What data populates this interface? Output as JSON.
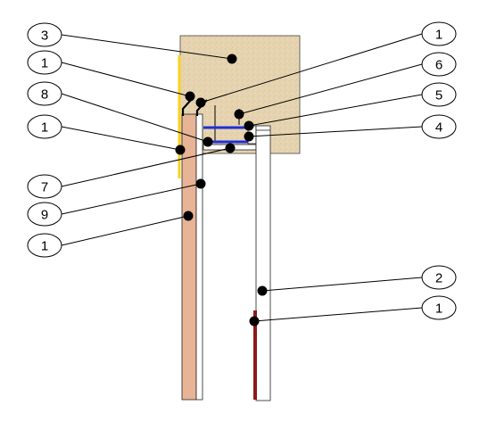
{
  "callouts": [
    {
      "id": "c3-top",
      "label": "3"
    },
    {
      "id": "c1-left-a",
      "label": "1"
    },
    {
      "id": "c8",
      "label": "8"
    },
    {
      "id": "c1-left-b",
      "label": "1"
    },
    {
      "id": "c7",
      "label": "7"
    },
    {
      "id": "c9",
      "label": "9"
    },
    {
      "id": "c1-left-c",
      "label": "1"
    },
    {
      "id": "c1-right-a",
      "label": "1"
    },
    {
      "id": "c6",
      "label": "6"
    },
    {
      "id": "c5",
      "label": "5"
    },
    {
      "id": "c4",
      "label": "4"
    },
    {
      "id": "c2",
      "label": "2"
    },
    {
      "id": "c1-right-b",
      "label": "1"
    }
  ],
  "colors": {
    "masonry": "#e8d6b4",
    "cladding": "#e8b496",
    "membrane": "#f7d21e",
    "flashing": "#1f2fd8",
    "panel": "#ffffff",
    "rod": "#8b1a1a",
    "stroke": "#000000"
  }
}
